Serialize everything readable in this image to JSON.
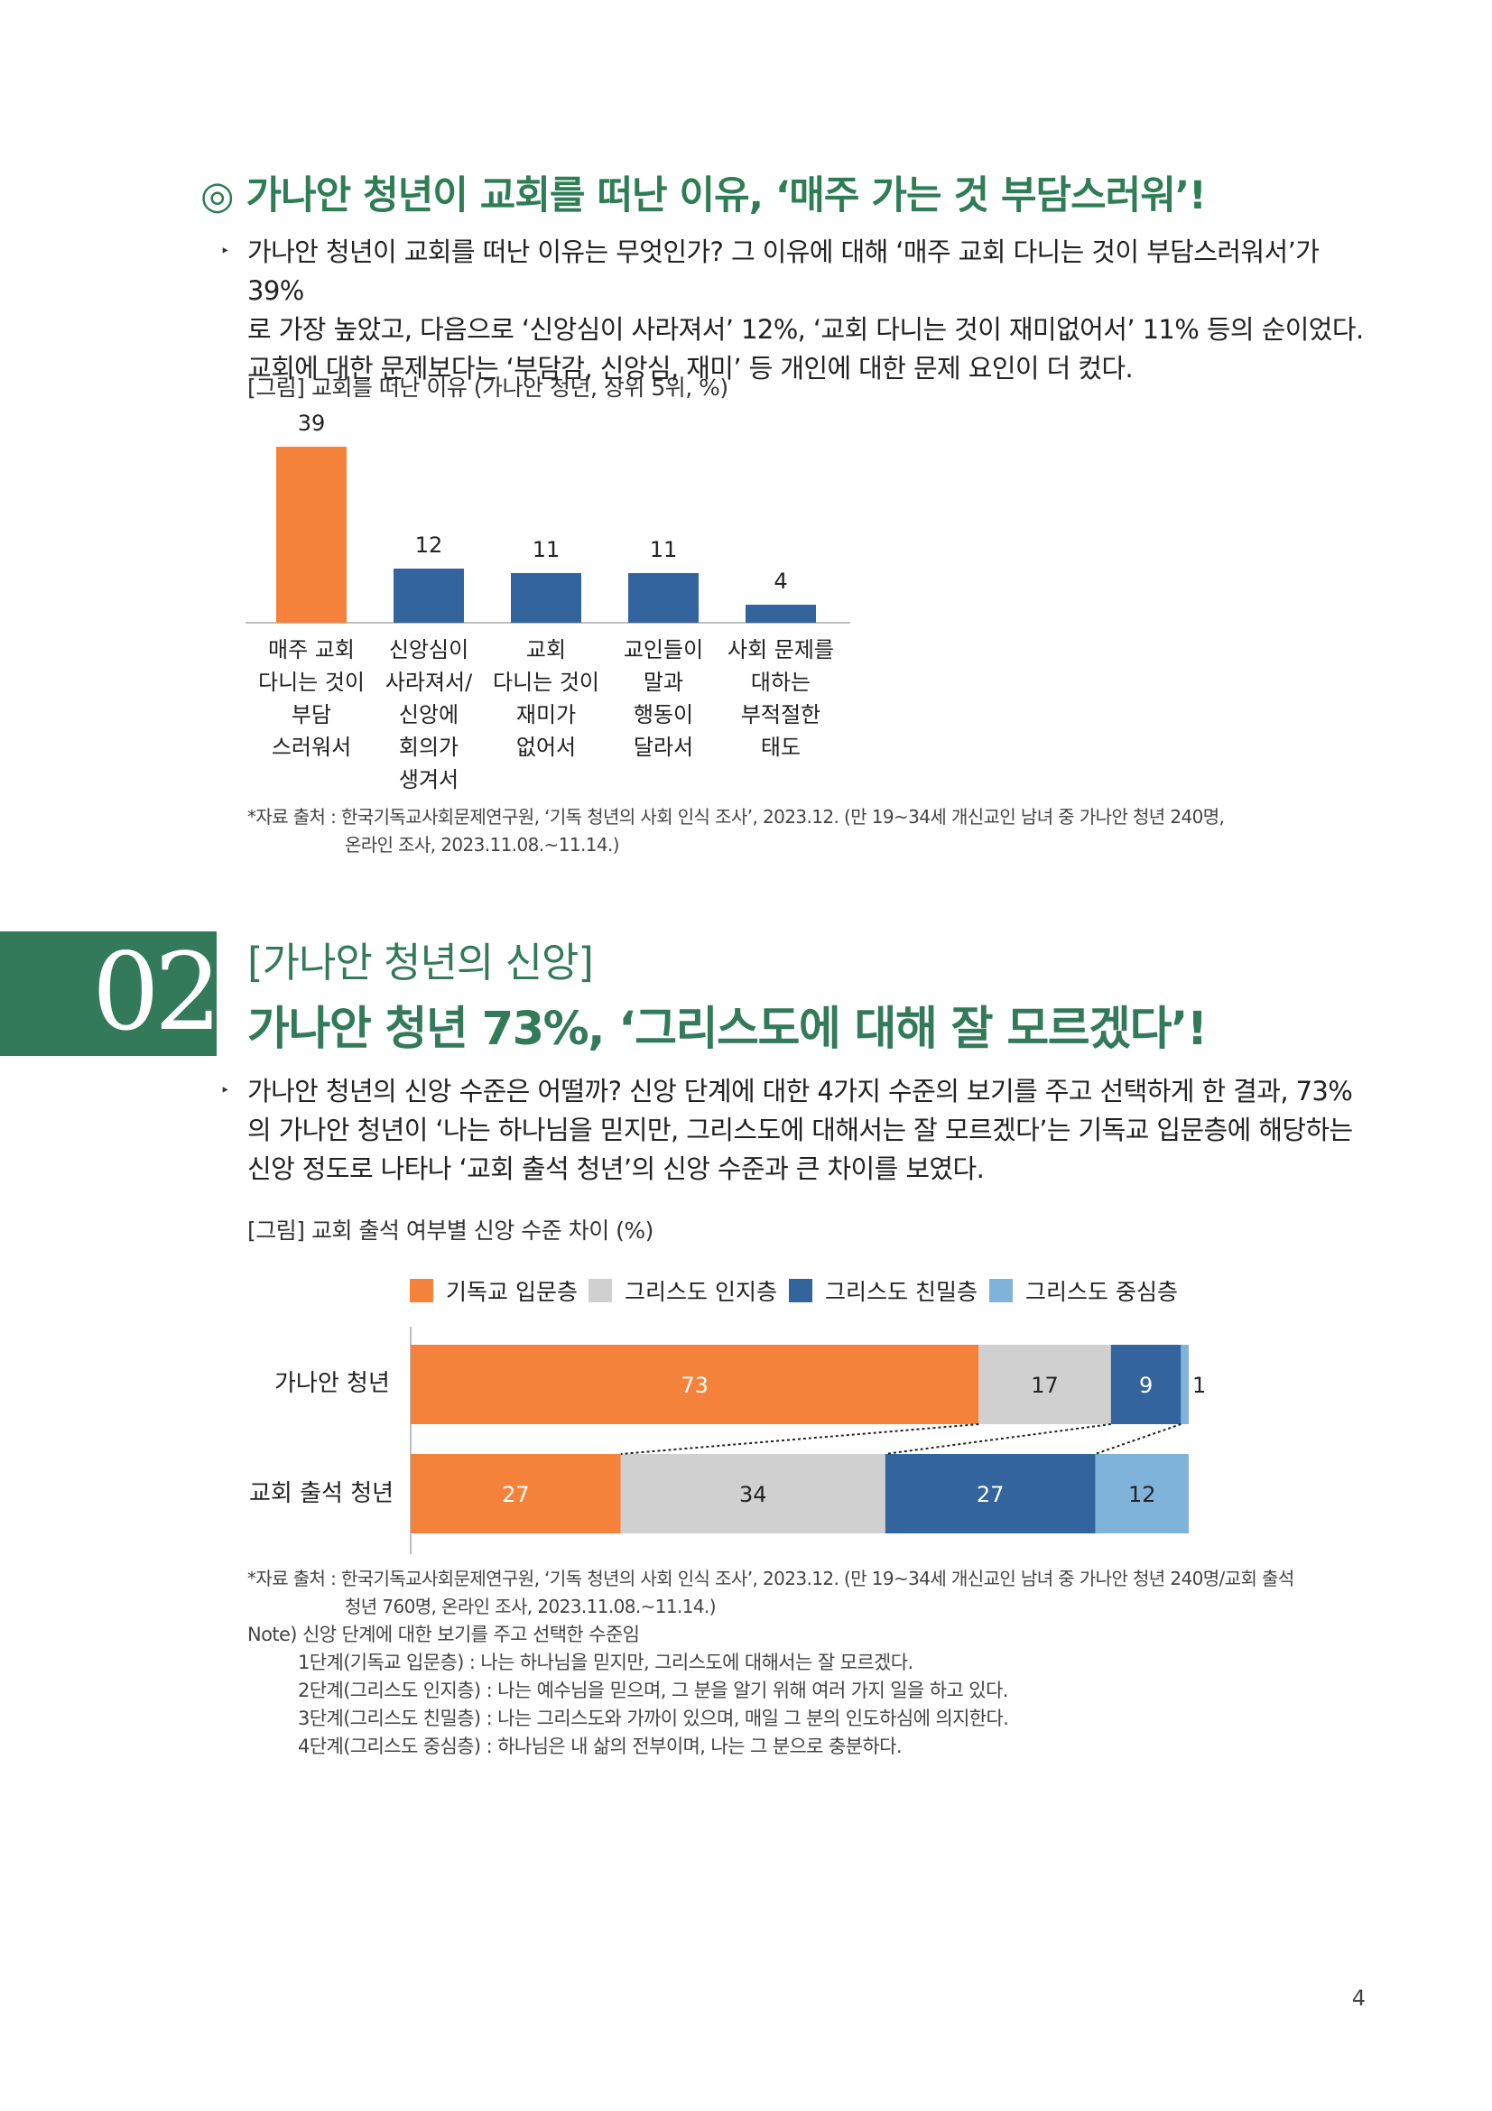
{
  "section1": {
    "title": "◎ 가나안 청년이 교회를 떠난 이유, ‘매주 가는 것 부담스러워’!",
    "bullet": "‣",
    "paragraph": [
      "가나안 청년이 교회를 떠난 이유는 무엇인가? 그 이유에 대해 ‘매주 교회 다니는 것이 부담스러워서’가 39%",
      "로 가장 높았고, 다음으로 ‘신앙심이 사라져서’ 12%, ‘교회 다니는 것이 재미없어서’ 11% 등의 순이었다.",
      "교회에 대한 문제보다는 ‘부담감, 신앙심, 재미’ 등 개인에 대한 문제 요인이 더 컸다."
    ],
    "figure_caption": "[그림] 교회를 떠난 이유 (가나안 청년, 상위 5위, %)",
    "source": [
      "*자료 출처 : 한국기독교사회문제연구원, ‘기독 청년의 사회 인식 조사’, 2023.12. (만 19~34세 개신교인 남녀 중 가나안 청년 240명,",
      "온라인 조사, 2023.11.08.~11.14.)"
    ]
  },
  "section2": {
    "number": "02",
    "subtitle": "[가나안 청년의 신앙]",
    "title": "가나안 청년 73%, ‘그리스도에 대해 잘 모르겠다’!",
    "bullet": "‣",
    "paragraph": [
      "가나안 청년의 신앙 수준은 어떨까? 신앙 단계에 대한 4가지 수준의 보기를 주고 선택하게 한 결과, 73%",
      "의 가나안 청년이 ‘나는 하나님을 믿지만, 그리스도에 대해서는 잘 모르겠다’는 기독교 입문층에 해당하는",
      "신앙 정도로 나타나 ‘교회 출석 청년’의 신앙 수준과 큰 차이를 보였다."
    ],
    "figure_caption": "[그림] 교회 출석 여부별 신앙 수준 차이 (%)",
    "source": [
      "*자료 출처 : 한국기독교사회문제연구원, ‘기독 청년의 사회 인식 조사’, 2023.12. (만 19~34세 개신교인 남녀 중 가나안 청년 240명/교회 출석",
      "청년 760명, 온라인 조사, 2023.11.08.~11.14.)"
    ],
    "note_header": "Note) 신앙 단계에 대한 보기를 주고 선택한 수준임",
    "notes": [
      "1단계(기독교 입문층) : 나는 하나님을 믿지만, 그리스도에 대해서는 잘 모르겠다.",
      "2단계(그리스도 인지층) : 나는 예수님을 믿으며, 그 분을 알기 위해 여러 가지 일을 하고 있다.",
      "3단계(그리스도 친밀층) : 나는 그리스도와 가까이 있으며, 매일 그 분의  인도하심에 의지한다.",
      "4단계(그리스도 중심층) : 하나님은 내 삶의 전부이며, 나는 그 분으로  충분하다."
    ]
  },
  "page_number": "4",
  "chart_data": [
    {
      "type": "bar",
      "title": "",
      "categories": [
        [
          "매주 교회",
          "다니는 것이",
          "부담",
          "스러워서"
        ],
        [
          "신앙심이",
          "사라져서/",
          "신앙에",
          "회의가",
          "생겨서"
        ],
        [
          "교회",
          "다니는 것이",
          "재미가",
          "없어서"
        ],
        [
          "교인들이",
          "말과",
          "행동이",
          "달라서"
        ],
        [
          "사회 문제를",
          "대하는",
          "부적절한",
          "태도"
        ]
      ],
      "values": [
        39,
        12,
        11,
        11,
        4
      ],
      "colors": [
        "#f5823a",
        "#34649e",
        "#34649e",
        "#34649e",
        "#34649e"
      ],
      "ylim": [
        0,
        39
      ],
      "grid": false
    },
    {
      "type": "bar",
      "orientation": "horizontal-stacked-100",
      "categories": [
        "가나안 청년",
        "교회 출석 청년"
      ],
      "series": [
        {
          "name": "기독교 입문층",
          "values": [
            73,
            27
          ],
          "color": "#f5823a"
        },
        {
          "name": "그리스도 인지층",
          "values": [
            17,
            34
          ],
          "color": "#d0d0d0"
        },
        {
          "name": "그리스도 친밀층",
          "values": [
            9,
            27
          ],
          "color": "#34649e"
        },
        {
          "name": "그리스도 중심층",
          "values": [
            1,
            12
          ],
          "color": "#80b3da"
        }
      ],
      "legend": "top",
      "xlim": [
        0,
        100
      ],
      "grid": false
    }
  ]
}
